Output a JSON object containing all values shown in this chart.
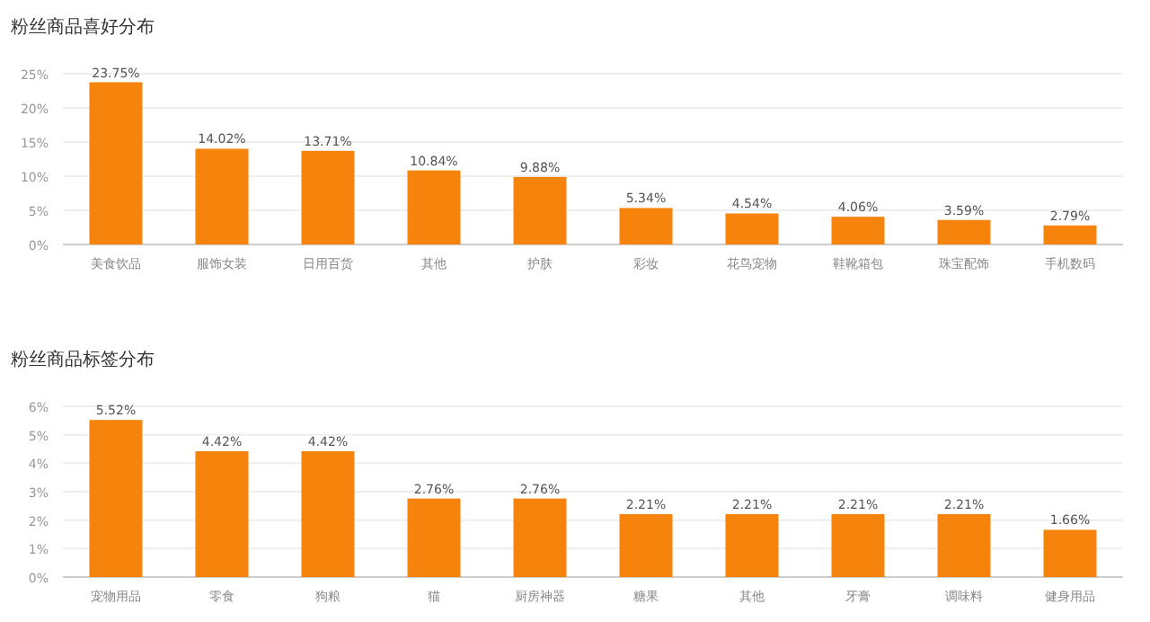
{
  "chart_data": [
    {
      "type": "bar",
      "title": "粉丝商品喜好分布",
      "categories": [
        "美食饮品",
        "服饰女装",
        "日用百货",
        "其他",
        "护肤",
        "彩妆",
        "花鸟宠物",
        "鞋靴箱包",
        "珠宝配饰",
        "手机数码"
      ],
      "values": [
        23.75,
        14.02,
        13.71,
        10.84,
        9.88,
        5.34,
        4.54,
        4.06,
        3.59,
        2.79
      ],
      "value_labels": [
        "23.75%",
        "14.02%",
        "13.71%",
        "10.84%",
        "9.88%",
        "5.34%",
        "4.54%",
        "4.06%",
        "3.59%",
        "2.79%"
      ],
      "color": "#f6830b",
      "ylim": [
        0,
        25
      ],
      "yticks": [
        {
          "value": 0,
          "label": "0%"
        },
        {
          "value": 5,
          "label": "5%"
        },
        {
          "value": 10,
          "label": "10%"
        },
        {
          "value": 15,
          "label": "15%"
        },
        {
          "value": 20,
          "label": "20%"
        },
        {
          "value": 25,
          "label": "25%"
        }
      ],
      "grid": "y"
    },
    {
      "type": "bar",
      "title": "粉丝商品标签分布",
      "categories": [
        "宠物用品",
        "零食",
        "狗粮",
        "猫",
        "厨房神器",
        "糖果",
        "其他",
        "牙膏",
        "调味料",
        "健身用品"
      ],
      "values": [
        5.52,
        4.42,
        4.42,
        2.76,
        2.76,
        2.21,
        2.21,
        2.21,
        2.21,
        1.66
      ],
      "value_labels": [
        "5.52%",
        "4.42%",
        "4.42%",
        "2.76%",
        "2.76%",
        "2.21%",
        "2.21%",
        "2.21%",
        "2.21%",
        "1.66%"
      ],
      "color": "#f6830b",
      "ylim": [
        0,
        6
      ],
      "yticks": [
        {
          "value": 0,
          "label": "0%"
        },
        {
          "value": 1,
          "label": "1%"
        },
        {
          "value": 2,
          "label": "2%"
        },
        {
          "value": 3,
          "label": "3%"
        },
        {
          "value": 4,
          "label": "4%"
        },
        {
          "value": 5,
          "label": "5%"
        },
        {
          "value": 6,
          "label": "6%"
        }
      ],
      "grid": "y"
    }
  ]
}
